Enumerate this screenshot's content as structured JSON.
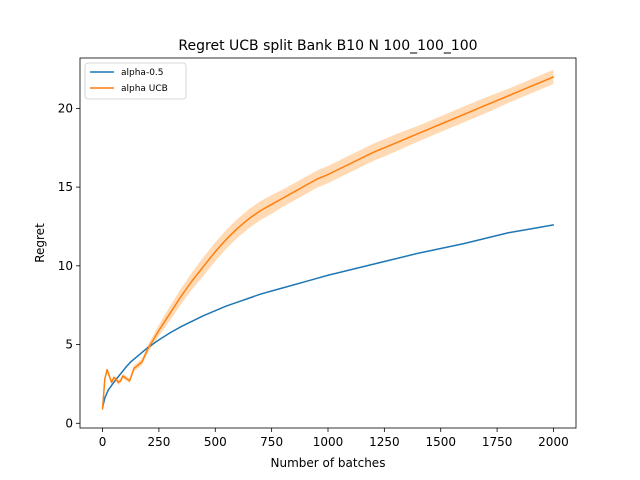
{
  "chart_data": {
    "type": "line",
    "title": "Regret UCB split Bank B10 N 100_100_100",
    "xlabel": "Number of batches",
    "ylabel": "Regret",
    "xlim": [
      -100,
      2100
    ],
    "ylim": [
      -0.3,
      23.2
    ],
    "xticks": [
      0,
      250,
      500,
      750,
      1000,
      1250,
      1500,
      1750,
      2000
    ],
    "yticks": [
      0,
      5,
      10,
      15,
      20
    ],
    "grid": false,
    "legend_position": "upper left",
    "series": [
      {
        "name": "alpha-0.5",
        "color": "#1f77b4",
        "x": [
          0,
          10,
          25,
          50,
          75,
          100,
          125,
          150,
          175,
          200,
          250,
          300,
          350,
          400,
          450,
          500,
          550,
          600,
          650,
          700,
          750,
          800,
          850,
          900,
          950,
          1000,
          1100,
          1200,
          1300,
          1400,
          1500,
          1600,
          1700,
          1800,
          1900,
          2000
        ],
        "y": [
          1.0,
          1.6,
          2.1,
          2.6,
          3.05,
          3.5,
          3.9,
          4.2,
          4.5,
          4.8,
          5.3,
          5.75,
          6.15,
          6.5,
          6.85,
          7.15,
          7.45,
          7.7,
          7.95,
          8.2,
          8.4,
          8.6,
          8.8,
          9.0,
          9.2,
          9.4,
          9.75,
          10.1,
          10.45,
          10.8,
          11.1,
          11.4,
          11.75,
          12.1,
          12.35,
          12.6
        ]
      },
      {
        "name": "alpha UCB",
        "color": "#ff7f0e",
        "band_color": "#ffbb78",
        "x": [
          0,
          10,
          20,
          30,
          40,
          50,
          60,
          70,
          80,
          90,
          100,
          110,
          120,
          130,
          140,
          150,
          175,
          200,
          250,
          300,
          350,
          400,
          450,
          500,
          550,
          600,
          650,
          700,
          750,
          800,
          850,
          900,
          950,
          1000,
          1100,
          1200,
          1300,
          1400,
          1500,
          1600,
          1700,
          1800,
          1900,
          2000
        ],
        "y": [
          0.9,
          2.8,
          3.4,
          3.0,
          2.6,
          2.9,
          2.8,
          2.6,
          2.7,
          3.0,
          2.9,
          2.8,
          2.7,
          3.1,
          3.5,
          3.6,
          3.9,
          4.7,
          5.9,
          7.0,
          8.1,
          9.1,
          10.0,
          10.9,
          11.7,
          12.4,
          13.0,
          13.5,
          13.9,
          14.3,
          14.7,
          15.1,
          15.5,
          15.8,
          16.5,
          17.2,
          17.8,
          18.4,
          19.0,
          19.6,
          20.2,
          20.8,
          21.4,
          22.0
        ],
        "band": [
          0.0,
          0.1,
          0.15,
          0.15,
          0.15,
          0.15,
          0.15,
          0.15,
          0.15,
          0.15,
          0.15,
          0.15,
          0.15,
          0.15,
          0.2,
          0.2,
          0.2,
          0.25,
          0.35,
          0.45,
          0.5,
          0.55,
          0.6,
          0.6,
          0.6,
          0.6,
          0.6,
          0.6,
          0.6,
          0.55,
          0.55,
          0.55,
          0.55,
          0.55,
          0.55,
          0.55,
          0.55,
          0.5,
          0.5,
          0.5,
          0.5,
          0.45,
          0.45,
          0.45
        ]
      }
    ]
  }
}
